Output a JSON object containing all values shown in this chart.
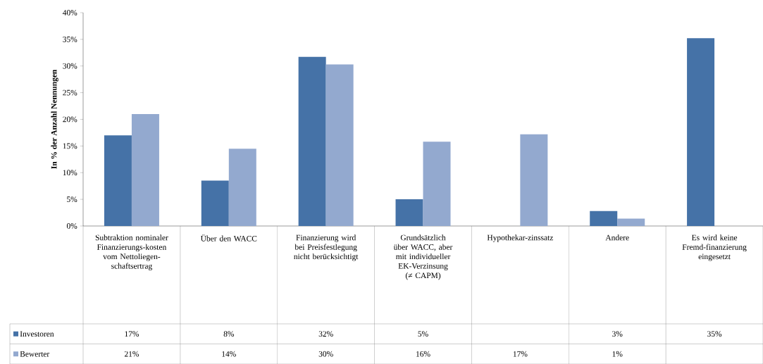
{
  "chart_data": {
    "type": "bar",
    "ylabel": "In % der Anzahl Nennungen",
    "categories": [
      "Subtraktion nominaler Finanzierungs-kosten vom Nettoliegen-schaftsertrag",
      "Über den WACC",
      "Finanzierung wird bei Preisfestlegung nicht berücksichtigt",
      "Grundsätzlich über WACC, aber mit individueller EK-Verzinsung (≠ CAPM)",
      "Hypothekar-zinssatz",
      "Andere",
      "Es wird keine Fremd-finanzierung eingesetzt"
    ],
    "series": [
      {
        "name": "Investoren",
        "color": "#4572a7",
        "values": [
          17,
          8.5,
          31.7,
          5,
          null,
          2.8,
          35.2
        ],
        "value_labels": [
          "17%",
          "8%",
          "32%",
          "5%",
          null,
          "3%",
          "35%"
        ]
      },
      {
        "name": "Bewerter",
        "color": "#93a9cf",
        "values": [
          21,
          14.5,
          30.3,
          15.8,
          17.2,
          1.4,
          null
        ],
        "value_labels": [
          "21%",
          "14%",
          "30%",
          "16%",
          "17%",
          "1%",
          null
        ]
      }
    ],
    "ylim": [
      0,
      40
    ],
    "yticks": [
      {
        "value": 0,
        "label": "0%"
      },
      {
        "value": 5,
        "label": "5%"
      },
      {
        "value": 10,
        "label": "10%"
      },
      {
        "value": 15,
        "label": "15%"
      },
      {
        "value": 20,
        "label": "20%"
      },
      {
        "value": 25,
        "label": "25%"
      },
      {
        "value": 30,
        "label": "30%"
      },
      {
        "value": 35,
        "label": "35%"
      },
      {
        "value": 40,
        "label": "40%"
      }
    ],
    "legend": "bottom"
  }
}
